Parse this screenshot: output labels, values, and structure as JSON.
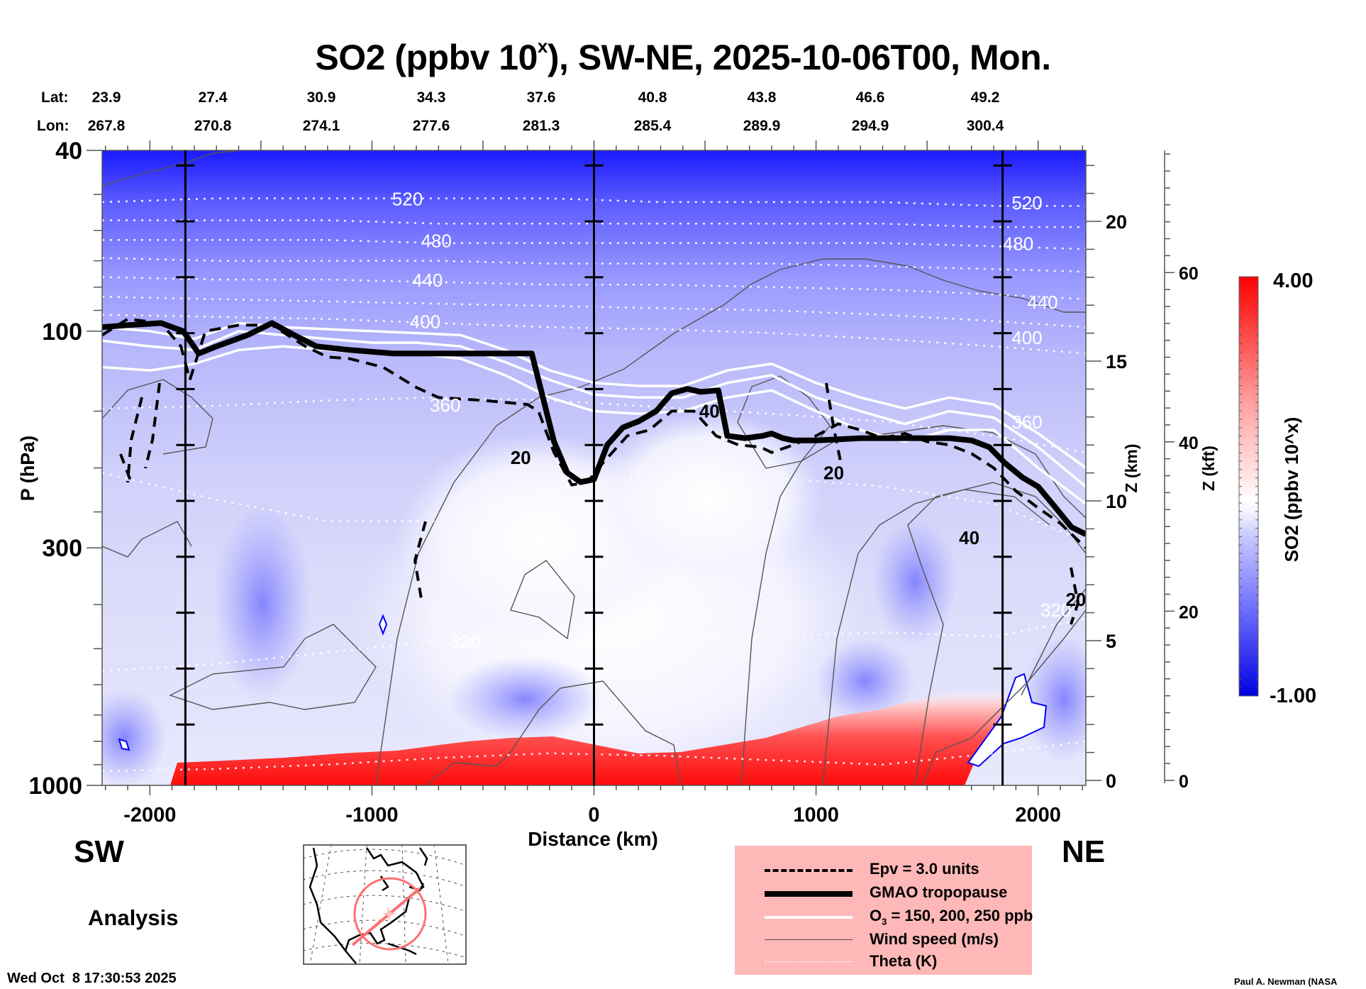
{
  "title": {
    "main": "SO2 (ppbv 10",
    "sup": "x",
    "rest": "), SW-NE, 2025-10-06T00, Mon."
  },
  "latlon": {
    "lat_label": "Lat:",
    "lon_label": "Lon:",
    "columns": [
      {
        "lat": "23.9",
        "lon": "267.8"
      },
      {
        "lat": "27.4",
        "lon": "270.8"
      },
      {
        "lat": "30.9",
        "lon": "274.1"
      },
      {
        "lat": "34.3",
        "lon": "277.6"
      },
      {
        "lat": "37.6",
        "lon": "281.3"
      },
      {
        "lat": "40.8",
        "lon": "285.4"
      },
      {
        "lat": "43.8",
        "lon": "289.9"
      },
      {
        "lat": "46.6",
        "lon": "294.9"
      },
      {
        "lat": "49.2",
        "lon": "300.4"
      }
    ]
  },
  "labels": {
    "sw": "SW",
    "ne": "NE",
    "analysis": "Analysis",
    "timestamp": "Wed Oct  8 17:30:53 2025",
    "credit": "Paul A. Newman (NASA"
  },
  "legend": {
    "items": [
      {
        "key": "epv",
        "text": "Epv = 3.0 units"
      },
      {
        "key": "tropopause",
        "text": "GMAO tropopause"
      },
      {
        "key": "ozone",
        "text_pre": "O",
        "text_sub": "3",
        "text_post": " = 150, 200, 250 ppb"
      },
      {
        "key": "wind",
        "text": "Wind speed (m/s)"
      },
      {
        "key": "theta",
        "text": "Theta (K)"
      }
    ]
  },
  "colors": {
    "so2_high": "#ff0000",
    "so2_mid": "#ffffff",
    "so2_low": "#0000ff",
    "legend_bg": "#ffb8b8",
    "map_circle": "#ff8080"
  },
  "chart_data": {
    "type": "heatmap",
    "title": "SO2 (ppbv 10^x), SW-NE, 2025-10-06T00, Mon.",
    "xlabel": "Distance (km)",
    "ylabel": "P (hPa)",
    "ylabel_right": "Z (km)",
    "ylabel_right2": "Z (kft)",
    "colorbar_label": "SO2 (ppbv 10^x)",
    "x_range": [
      -2215,
      2215
    ],
    "x_ticks": [
      -2000,
      -1000,
      0,
      1000,
      2000
    ],
    "y_scale": "log",
    "y_range_hpa": [
      1000,
      40
    ],
    "y_ticks_hpa": [
      40,
      100,
      300,
      1000
    ],
    "z_km_ticks": [
      0,
      5,
      10,
      15,
      20
    ],
    "z_kft_ticks": [
      0,
      20,
      40,
      60
    ],
    "colorbar_range": [
      -1.0,
      4.0
    ],
    "colorbar_tick_labels": [
      "4.00",
      "-1.00"
    ],
    "reference_lines_km": [
      -1840,
      0,
      1840
    ],
    "theta_contours_K": [
      {
        "value": 520,
        "p": [
          52,
          51,
          51,
          51,
          51,
          52,
          52,
          52,
          53,
          53
        ]
      },
      {
        "value": 500,
        "p": [
          57,
          57,
          57,
          58,
          58,
          58,
          58,
          58,
          59,
          59
        ]
      },
      {
        "value": 480,
        "p": [
          63,
          63,
          63,
          64,
          64,
          64,
          64,
          64,
          65,
          66
        ]
      },
      {
        "value": 460,
        "p": [
          69,
          70,
          70,
          70,
          71,
          71,
          71,
          72,
          73,
          74
        ]
      },
      {
        "value": 440,
        "p": [
          76,
          77,
          77,
          78,
          79,
          79,
          80,
          81,
          83,
          85
        ]
      },
      {
        "value": 420,
        "p": [
          84,
          85,
          86,
          87,
          88,
          89,
          90,
          92,
          95,
          98
        ]
      },
      {
        "value": 400,
        "p": [
          92,
          93,
          94,
          96,
          98,
          99,
          101,
          104,
          108,
          112
        ]
      },
      {
        "value": 360,
        "p": [
          148,
          146,
          142,
          140,
          142,
          147,
          152,
          158,
          170,
          185
        ]
      },
      {
        "value": 340,
        "p": [
          205,
          235,
          262,
          262,
          225,
          205,
          210,
          220,
          240,
          290
        ]
      },
      {
        "value": 320,
        "p": [
          560,
          540,
          510,
          480,
          470,
          480,
          470,
          460,
          470,
          430
        ]
      },
      {
        "value": 300,
        "p": [
          930,
          920,
          900,
          870,
          850,
          860,
          880,
          900,
          850,
          800
        ]
      }
    ],
    "theta_x_km": [
      -2215,
      -1700,
      -1200,
      -700,
      -200,
      300,
      800,
      1300,
      1800,
      2215
    ],
    "theta_labels": [
      {
        "value": "520",
        "x": -840,
        "p": 51
      },
      {
        "value": "480",
        "x": -710,
        "p": 63
      },
      {
        "value": "440",
        "x": -750,
        "p": 77
      },
      {
        "value": "400",
        "x": -760,
        "p": 95
      },
      {
        "value": "360",
        "x": -670,
        "p": 145
      },
      {
        "value": "320",
        "x": -580,
        "p": 480
      },
      {
        "value": "520",
        "x": 1950,
        "p": 52
      },
      {
        "value": "480",
        "x": 1910,
        "p": 64
      },
      {
        "value": "440",
        "x": 2020,
        "p": 86
      },
      {
        "value": "400",
        "x": 1950,
        "p": 103
      },
      {
        "value": "360",
        "x": 1950,
        "p": 158
      },
      {
        "value": "320",
        "x": 2080,
        "p": 410
      }
    ],
    "tropopause_hpa": {
      "x": [
        -2215,
        -2100,
        -1950,
        -1850,
        -1780,
        -1700,
        -1560,
        -1450,
        -1350,
        -1250,
        -1100,
        -900,
        -700,
        -500,
        -280,
        -230,
        -180,
        -120,
        -60,
        0,
        60,
        130,
        200,
        280,
        350,
        420,
        480,
        560,
        600,
        680,
        760,
        800,
        850,
        900,
        1000,
        1100,
        1200,
        1300,
        1400,
        1500,
        1600,
        1700,
        1780,
        1850,
        1930,
        2000,
        2080,
        2150,
        2215
      ],
      "p": [
        98,
        97,
        96,
        100,
        112,
        108,
        102,
        96,
        102,
        108,
        110,
        112,
        112,
        112,
        112,
        140,
        175,
        205,
        215,
        212,
        178,
        163,
        158,
        150,
        137,
        134,
        136,
        135,
        170,
        172,
        170,
        168,
        172,
        174,
        174,
        173,
        172,
        172,
        172,
        172,
        172,
        174,
        180,
        195,
        210,
        220,
        245,
        270,
        280
      ]
    },
    "epv_3_hpa": {
      "x": [
        -2215,
        -2100,
        -1950,
        -1860,
        -1820,
        -1750,
        -1600,
        -1450,
        -1300,
        -1200,
        -1100,
        -950,
        -800,
        -700,
        -500,
        -300,
        -250,
        -180,
        -100,
        -30,
        40,
        150,
        250,
        350,
        450,
        550,
        650,
        750,
        800,
        870,
        1000,
        1100,
        1200,
        1300,
        1400,
        1500,
        1600,
        1700,
        1800,
        1900,
        2000,
        2100,
        2215
      ],
      "p": [
        102,
        94,
        96,
        108,
        128,
        100,
        97,
        97,
        108,
        114,
        115,
        120,
        133,
        140,
        142,
        145,
        150,
        185,
        218,
        215,
        195,
        170,
        165,
        150,
        150,
        170,
        178,
        180,
        185,
        180,
        170,
        160,
        165,
        172,
        168,
        175,
        178,
        186,
        200,
        225,
        245,
        265,
        300
      ]
    },
    "ozone_contours_ppb": [
      {
        "value": 150,
        "p": [
          120,
          122,
          118,
          110,
          108,
          110,
          112,
          112,
          115,
          125,
          140,
          150,
          152,
          150,
          140,
          135,
          150,
          165,
          175,
          165,
          165,
          200,
          240
        ]
      },
      {
        "value": 200,
        "p": [
          105,
          108,
          110,
          100,
          102,
          104,
          106,
          106,
          108,
          117,
          128,
          138,
          140,
          140,
          130,
          125,
          140,
          150,
          160,
          150,
          155,
          180,
          220
        ]
      },
      {
        "value": 250,
        "p": [
          98,
          100,
          104,
          96,
          98,
          99,
          100,
          101,
          102,
          110,
          122,
          130,
          132,
          132,
          122,
          118,
          130,
          140,
          148,
          140,
          145,
          168,
          200
        ]
      }
    ],
    "ozone_x_km": [
      -2215,
      -2000,
      -1800,
      -1600,
      -1400,
      -1200,
      -1000,
      -800,
      -600,
      -400,
      -200,
      0,
      200,
      400,
      600,
      800,
      1000,
      1200,
      1400,
      1600,
      1800,
      2000,
      2215
    ],
    "wind_labels": [
      {
        "value": "20",
        "x": -330,
        "p": 190
      },
      {
        "value": "40",
        "x": 520,
        "p": 150
      },
      {
        "value": "20",
        "x": 1080,
        "p": 205
      },
      {
        "value": "40",
        "x": 1690,
        "p": 285
      },
      {
        "value": "20",
        "x": 2170,
        "p": 390
      }
    ],
    "so2_field_notes": "Upper levels (40-100 hPa) ~ -1 to 0 (blue); mid troposphere ~0 to 0.5 (light blue/white); boundary layer 700-1000 hPa from -1200 to 1750 km ~3-4 (red); small minima near (-2100, 800 hPa), (-950, 440 hPa), (1880, 650 hPa)."
  }
}
